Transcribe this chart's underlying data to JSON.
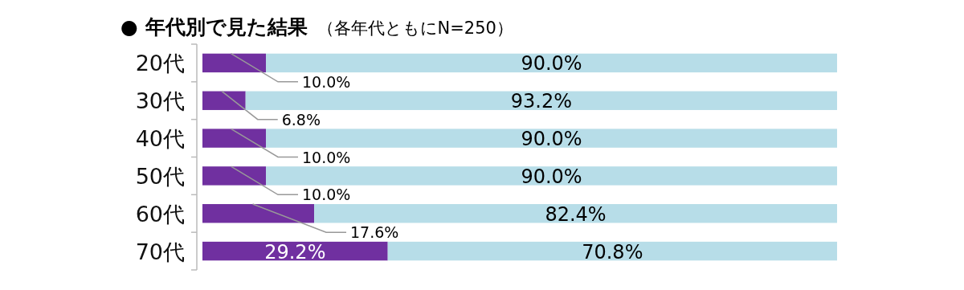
{
  "chart_data": {
    "type": "bar",
    "orientation": "horizontal",
    "stacked": true,
    "title": "● 年代別で見た結果",
    "subtitle": "（各年代ともにN=250）",
    "categories": [
      "20代",
      "30代",
      "40代",
      "50代",
      "60代",
      "70代"
    ],
    "xlim": [
      0,
      100
    ],
    "tick_labels": "y",
    "series": [
      {
        "color": "#7030a0",
        "values": [
          10,
          6.8,
          10,
          10,
          17.6,
          29.2
        ],
        "value_labels": [
          "10.0%",
          "6.8%",
          "10.0%",
          "10.0%",
          "17.6%",
          "29.2%"
        ]
      },
      {
        "color": "#b7dde8",
        "values": [
          90,
          93.2,
          90,
          90,
          82.4,
          70.8
        ],
        "value_labels": [
          "90.0%",
          "93.2%",
          "90.0%",
          "90.0%",
          "82.4%",
          "70.8%"
        ]
      }
    ]
  }
}
